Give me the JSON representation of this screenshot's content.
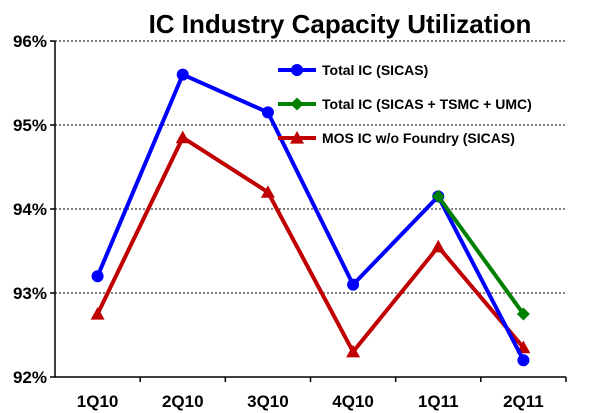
{
  "chart_data": {
    "type": "line",
    "title": "IC Industry Capacity Utilization",
    "categories": [
      "1Q10",
      "2Q10",
      "3Q10",
      "4Q10",
      "1Q11",
      "2Q11"
    ],
    "y_ticks": [
      "92%",
      "93%",
      "94%",
      "95%",
      "96%"
    ],
    "ylim": [
      92,
      96
    ],
    "grid": true,
    "legend_position": "top-right",
    "series": [
      {
        "name": "Total IC (SICAS)",
        "color": "#0000ff",
        "marker": "circle",
        "values": [
          93.2,
          95.6,
          95.15,
          93.1,
          94.15,
          92.2
        ]
      },
      {
        "name": "Total IC (SICAS + TSMC + UMC)",
        "color": "#008000",
        "marker": "diamond",
        "values": [
          null,
          null,
          null,
          null,
          94.15,
          92.75
        ]
      },
      {
        "name": "MOS IC w/o Foundry (SICAS)",
        "color": "#c00000",
        "marker": "triangle",
        "values": [
          92.75,
          94.85,
          94.2,
          92.3,
          93.55,
          92.35
        ]
      }
    ]
  }
}
